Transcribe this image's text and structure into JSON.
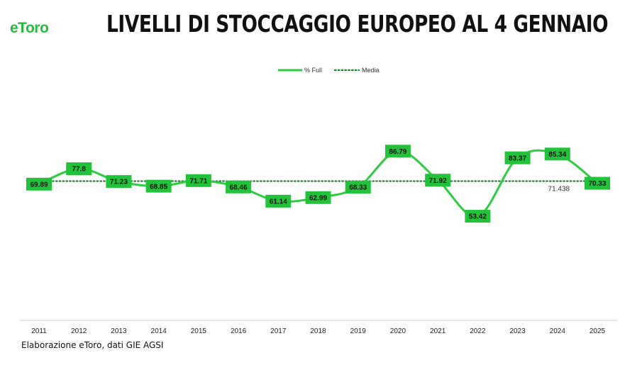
{
  "brand": {
    "logo_text": "eToro"
  },
  "title": "LIVELLI DI STOCCAGGIO EUROPEO AL 4 GENNAIO",
  "source_note": "Elaborazione eToro, dati GIE AGSI",
  "colors": {
    "series": "#2ecc40",
    "label_box": "#22c33a",
    "average": "#1a7a2a",
    "axis": "#cccccc"
  },
  "chart_data": {
    "type": "line",
    "title": "LIVELLI DI STOCCAGGIO EUROPEO AL 4 GENNAIO",
    "x": [
      "2011",
      "2012",
      "2013",
      "2014",
      "2015",
      "2016",
      "2017",
      "2018",
      "2019",
      "2020",
      "2021",
      "2022",
      "2023",
      "2024",
      "2025"
    ],
    "series": [
      {
        "name": "% Full",
        "values": [
          69.89,
          77.8,
          71.23,
          68.85,
          71.71,
          68.46,
          61.14,
          62.99,
          68.33,
          86.79,
          71.92,
          53.42,
          83.37,
          85.34,
          70.33
        ],
        "style": "smooth-solid"
      },
      {
        "name": "Media",
        "value": 71.438,
        "value_label": "71.438",
        "style": "dotted"
      }
    ],
    "ylim": [
      0,
      100
    ],
    "grid": false,
    "legend": "top-center",
    "data_labels": [
      "69.89",
      "77.8",
      "71.23",
      "68.85",
      "71.71",
      "68.46",
      "61.14",
      "62.99",
      "68.33",
      "86.79",
      "71.92",
      "53.42",
      "83.37",
      "85.34",
      "70.33"
    ]
  }
}
